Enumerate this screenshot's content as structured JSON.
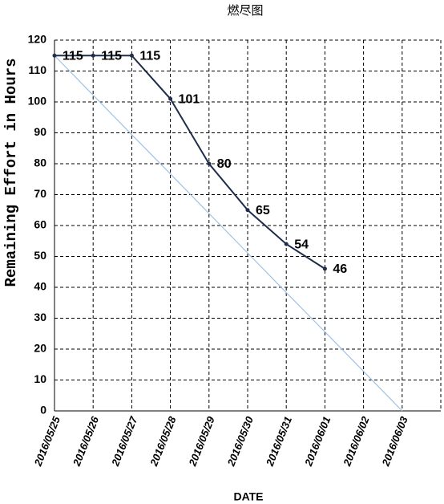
{
  "chart_data": {
    "type": "line",
    "title": "燃尽图",
    "x_label": "DATE",
    "y_label": "Remaining Effort in Hours",
    "categories": [
      "2016/05/25",
      "2016/05/26",
      "2016/05/27",
      "2016/05/28",
      "2016/05/29",
      "2016/05/30",
      "2016/05/31",
      "2016/06/01",
      "2016/06/02",
      "2016/06/03"
    ],
    "series": [
      {
        "color": "#1f2d4a",
        "values": [
          115,
          115,
          115,
          101,
          80,
          65,
          54,
          46,
          null,
          null
        ],
        "data_labels": true
      },
      {
        "color": "#9dc3e6",
        "values": [
          115,
          102.2,
          89.4,
          76.7,
          63.9,
          51.1,
          38.3,
          25.6,
          12.8,
          0
        ],
        "data_labels": false
      }
    ],
    "ylim": [
      0,
      120
    ],
    "yticks": [
      0,
      10,
      20,
      30,
      40,
      50,
      60,
      70,
      80,
      90,
      100,
      110,
      120
    ],
    "grid": true
  }
}
